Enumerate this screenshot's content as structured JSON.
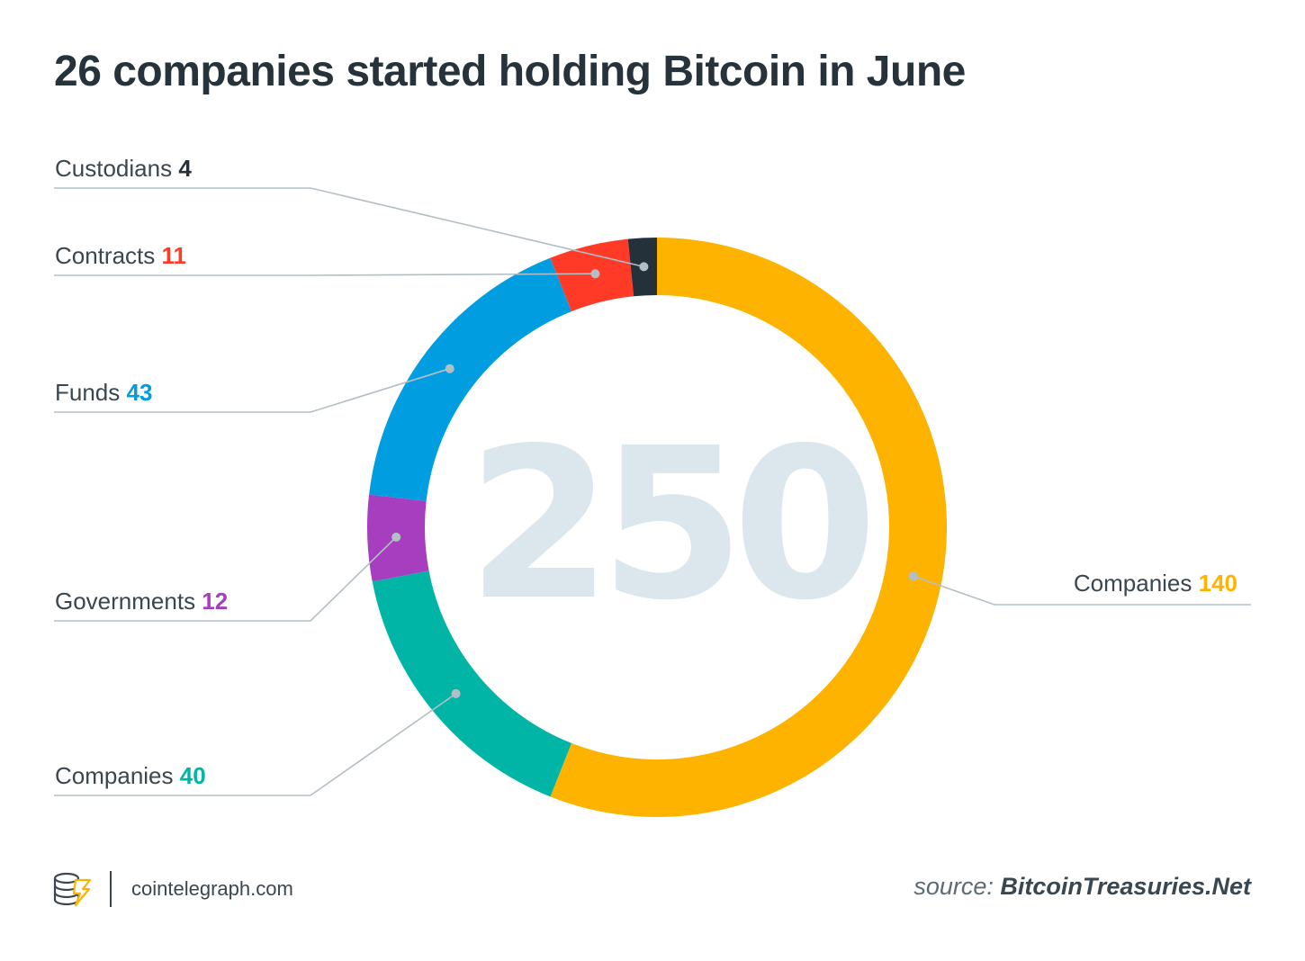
{
  "title": "26 companies started holding Bitcoin in June",
  "chart_data": {
    "type": "pie",
    "variant": "donut",
    "center_label": "250",
    "slices": [
      {
        "label": "Companies",
        "value": 140,
        "color": "#fdb300"
      },
      {
        "label": "Companies",
        "value": 40,
        "color": "#00b5a6"
      },
      {
        "label": "Governments",
        "value": 12,
        "color": "#a73ebf"
      },
      {
        "label": "Funds",
        "value": 43,
        "color": "#009ee0"
      },
      {
        "label": "Contracts",
        "value": 11,
        "color": "#ff3b27"
      },
      {
        "label": "Custodians",
        "value": 4,
        "color": "#24303a"
      }
    ]
  },
  "footer": {
    "site": "cointelegraph.com",
    "source_prefix": "source: ",
    "source_name": "BitcoinTreasuries.Net"
  }
}
